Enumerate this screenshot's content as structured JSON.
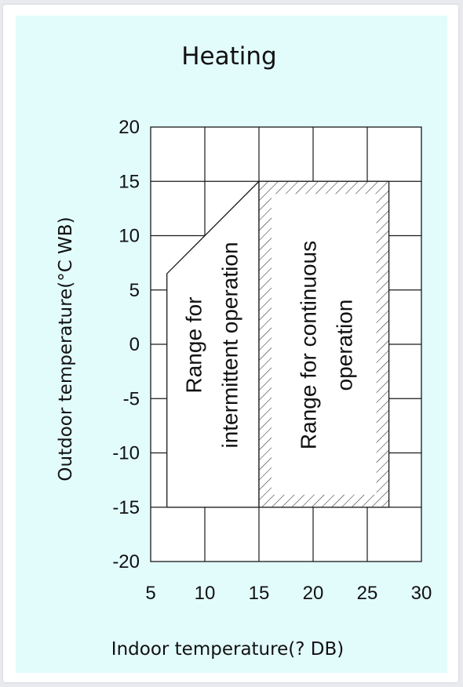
{
  "chart_data": {
    "type": "area",
    "title": "Heating",
    "xlabel": "Indoor temperature(? DB)",
    "ylabel": "Outdoor temperature(°C WB)",
    "xlim": [
      5,
      30
    ],
    "ylim": [
      -20,
      20
    ],
    "x_ticks": [
      "5",
      "10",
      "15",
      "20",
      "25",
      "30"
    ],
    "y_ticks": [
      "20",
      "15",
      "10",
      "5",
      "0",
      "-5",
      "-10",
      "-15",
      "-20"
    ],
    "grid": true,
    "regions": [
      {
        "name": "Range for intermittent operation",
        "label_lines": [
          "Range for",
          "intermittent operation"
        ],
        "fill": "none",
        "polygon": [
          [
            6.5,
            -15
          ],
          [
            6.5,
            6.5
          ],
          [
            15,
            15
          ],
          [
            15,
            -15
          ]
        ]
      },
      {
        "name": "Range for continuous operation",
        "label_lines": [
          "Range for continuous",
          "operation"
        ],
        "fill": "hatched",
        "polygon": [
          [
            15,
            -15
          ],
          [
            15,
            15
          ],
          [
            27,
            15
          ],
          [
            27,
            -15
          ]
        ]
      }
    ]
  },
  "colors": {
    "panel_bg": "#e2fbfb",
    "plot_bg": "#ffffff",
    "line": "#1a1a1a"
  }
}
